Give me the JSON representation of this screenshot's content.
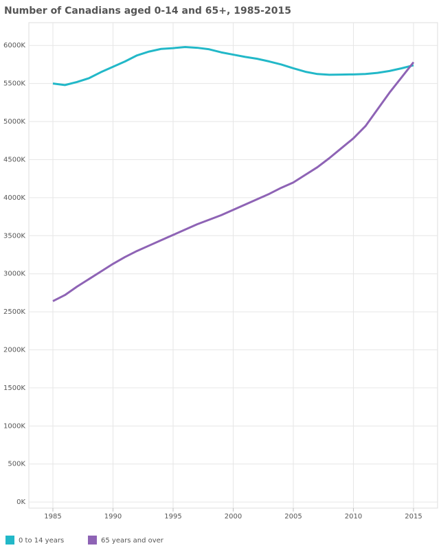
{
  "chart_data": {
    "type": "line",
    "title": "Number of Canadians aged 0-14 and 65+, 1985-2015",
    "x": [
      1985,
      1986,
      1987,
      1988,
      1989,
      1990,
      1991,
      1992,
      1993,
      1994,
      1995,
      1996,
      1997,
      1998,
      1999,
      2000,
      2001,
      2002,
      2003,
      2004,
      2005,
      2006,
      2007,
      2008,
      2009,
      2010,
      2011,
      2012,
      2013,
      2014,
      2015
    ],
    "series": [
      {
        "name": "0 to 14 years",
        "color": "#22b8c8",
        "values": [
          5500000,
          5480000,
          5520000,
          5570000,
          5650000,
          5720000,
          5790000,
          5870000,
          5920000,
          5955000,
          5965000,
          5980000,
          5970000,
          5950000,
          5910000,
          5880000,
          5850000,
          5825000,
          5790000,
          5750000,
          5700000,
          5655000,
          5625000,
          5615000,
          5618000,
          5620000,
          5625000,
          5640000,
          5665000,
          5700000,
          5740000
        ]
      },
      {
        "name": "65 years and over",
        "color": "#8e63b5",
        "values": [
          2640000,
          2720000,
          2830000,
          2930000,
          3030000,
          3130000,
          3220000,
          3300000,
          3370000,
          3440000,
          3510000,
          3580000,
          3650000,
          3710000,
          3770000,
          3840000,
          3910000,
          3980000,
          4050000,
          4130000,
          4200000,
          4300000,
          4400000,
          4520000,
          4650000,
          4780000,
          4940000,
          5160000,
          5380000,
          5580000,
          5780000
        ]
      }
    ],
    "xlim": [
      1983,
      2017
    ],
    "xticks": [
      1985,
      1990,
      1995,
      2000,
      2005,
      2010,
      2015
    ],
    "ylim": [
      -80000,
      6300000
    ],
    "yticks": [
      {
        "value": 0,
        "label": "0K"
      },
      {
        "value": 500000,
        "label": "500K"
      },
      {
        "value": 1000000,
        "label": "1000K"
      },
      {
        "value": 1500000,
        "label": "1500K"
      },
      {
        "value": 2000000,
        "label": "2000K"
      },
      {
        "value": 2500000,
        "label": "2500K"
      },
      {
        "value": 3000000,
        "label": "3000K"
      },
      {
        "value": 3500000,
        "label": "3500K"
      },
      {
        "value": 4000000,
        "label": "4000K"
      },
      {
        "value": 4500000,
        "label": "4500K"
      },
      {
        "value": 5000000,
        "label": "5000K"
      },
      {
        "value": 5500000,
        "label": "5500K"
      },
      {
        "value": 6000000,
        "label": "6000K"
      }
    ],
    "grid": true
  }
}
